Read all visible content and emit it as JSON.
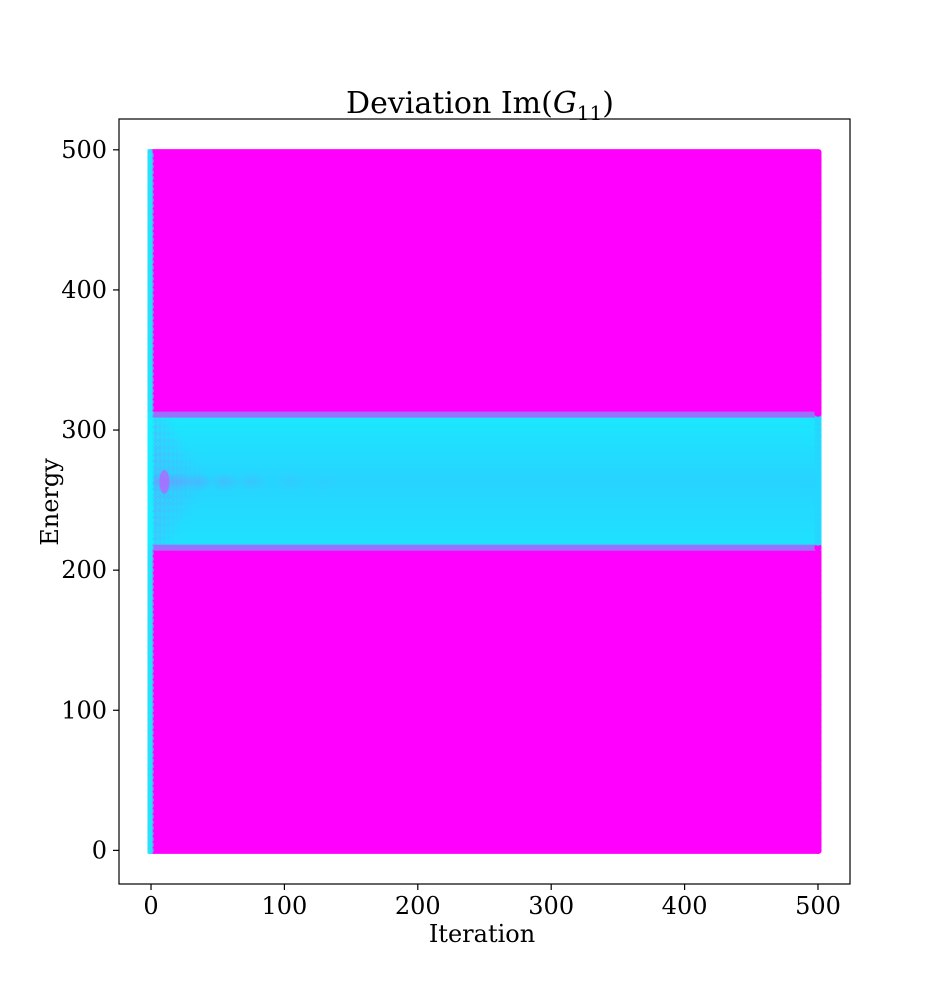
{
  "chart_data": {
    "type": "scatter",
    "title": {
      "prefix": "Deviation Im(",
      "var": "G",
      "sub": "11",
      "suffix": ")"
    },
    "xlabel": "Iteration",
    "ylabel": "Energy",
    "xlim": [
      -24,
      524
    ],
    "ylim": [
      -24,
      522
    ],
    "xticks": [
      0,
      100,
      200,
      300,
      400,
      500
    ],
    "yticks": [
      0,
      100,
      200,
      300,
      400,
      500
    ],
    "x_range": [
      0,
      500
    ],
    "y_range": [
      0,
      498
    ],
    "grid": false,
    "legend": "none",
    "colormap": "cool",
    "colors": {
      "outside_band": "#ff00ff",
      "band": "#23d8ff",
      "band_edge": "#9a70ff",
      "left_edge": "#19f0ff"
    },
    "band": {
      "y_min": 216,
      "y_max": 311,
      "edge_lower": 216,
      "edge_upper": 311
    },
    "transient": {
      "center_y": 263,
      "x_extent": 200,
      "blob_x": [
        8,
        20,
        35,
        55,
        75,
        105,
        130
      ],
      "blob_intensity": [
        0.75,
        0.6,
        0.45,
        0.35,
        0.25,
        0.15,
        0.08
      ]
    }
  }
}
